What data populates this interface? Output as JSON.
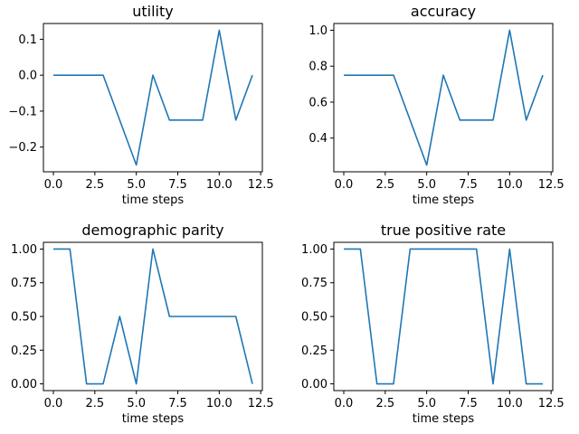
{
  "line_color": "#1f77b4",
  "chart_data": [
    {
      "type": "line",
      "title": "utility",
      "xlabel": "time steps",
      "ylabel": "",
      "x": [
        0,
        1,
        2,
        3,
        4,
        5,
        6,
        7,
        8,
        9,
        10,
        11,
        12
      ],
      "values": [
        0,
        0,
        0,
        0,
        -0.125,
        -0.25,
        0,
        -0.125,
        -0.125,
        -0.125,
        0.125,
        -0.125,
        0
      ],
      "xlim": [
        -0.6,
        12.6
      ],
      "ylim": [
        -0.2688,
        0.1438
      ],
      "xticks": [
        0,
        2.5,
        5,
        7.5,
        10,
        12.5
      ],
      "xtick_labels": [
        "0.0",
        "2.5",
        "5.0",
        "7.5",
        "10.0",
        "12.5"
      ],
      "yticks": [
        -0.2,
        -0.1,
        0.0,
        0.1
      ],
      "ytick_labels": [
        "−0.2",
        "−0.1",
        "0.0",
        "0.1"
      ],
      "grid": false
    },
    {
      "type": "line",
      "title": "accuracy",
      "xlabel": "time steps",
      "ylabel": "",
      "x": [
        0,
        1,
        2,
        3,
        4,
        5,
        6,
        7,
        8,
        9,
        10,
        11,
        12
      ],
      "values": [
        0.75,
        0.75,
        0.75,
        0.75,
        0.5,
        0.25,
        0.75,
        0.5,
        0.5,
        0.5,
        1.0,
        0.5,
        0.75
      ],
      "xlim": [
        -0.6,
        12.6
      ],
      "ylim": [
        0.2125,
        1.0375
      ],
      "xticks": [
        0,
        2.5,
        5,
        7.5,
        10,
        12.5
      ],
      "xtick_labels": [
        "0.0",
        "2.5",
        "5.0",
        "7.5",
        "10.0",
        "12.5"
      ],
      "yticks": [
        0.4,
        0.6,
        0.8,
        1.0
      ],
      "ytick_labels": [
        "0.4",
        "0.6",
        "0.8",
        "1.0"
      ],
      "grid": false
    },
    {
      "type": "line",
      "title": "demographic parity",
      "xlabel": "time steps",
      "ylabel": "",
      "x": [
        0,
        1,
        2,
        3,
        4,
        5,
        6,
        7,
        8,
        9,
        10,
        11,
        12
      ],
      "values": [
        1.0,
        1.0,
        0,
        0,
        0.5,
        0,
        1.0,
        0.5,
        0.5,
        0.5,
        0.5,
        0.5,
        0
      ],
      "xlim": [
        -0.6,
        12.6
      ],
      "ylim": [
        -0.05,
        1.05
      ],
      "xticks": [
        0,
        2.5,
        5,
        7.5,
        10,
        12.5
      ],
      "xtick_labels": [
        "0.0",
        "2.5",
        "5.0",
        "7.5",
        "10.0",
        "12.5"
      ],
      "yticks": [
        0,
        0.25,
        0.5,
        0.75,
        1.0
      ],
      "ytick_labels": [
        "0.00",
        "0.25",
        "0.50",
        "0.75",
        "1.00"
      ],
      "grid": false
    },
    {
      "type": "line",
      "title": "true positive rate",
      "xlabel": "time steps",
      "ylabel": "",
      "x": [
        0,
        1,
        2,
        3,
        4,
        5,
        6,
        7,
        8,
        9,
        10,
        11,
        12
      ],
      "values": [
        1.0,
        1.0,
        0,
        0,
        1.0,
        1.0,
        1.0,
        1.0,
        1.0,
        0,
        1.0,
        0,
        0
      ],
      "xlim": [
        -0.6,
        12.6
      ],
      "ylim": [
        -0.05,
        1.05
      ],
      "xticks": [
        0,
        2.5,
        5,
        7.5,
        10,
        12.5
      ],
      "xtick_labels": [
        "0.0",
        "2.5",
        "5.0",
        "7.5",
        "10.0",
        "12.5"
      ],
      "yticks": [
        0,
        0.25,
        0.5,
        0.75,
        1.0
      ],
      "ytick_labels": [
        "0.00",
        "0.25",
        "0.50",
        "0.75",
        "1.00"
      ],
      "grid": false
    }
  ]
}
